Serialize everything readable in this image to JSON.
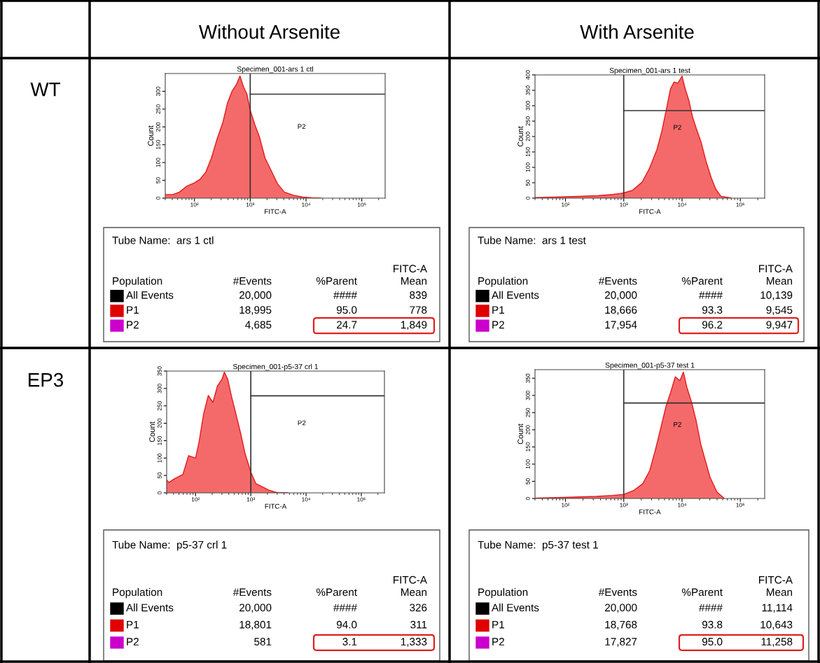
{
  "chart_data": [
    {
      "type": "area",
      "title": "Specimen_001-ars 1 ctl",
      "xlabel": "FITC-A",
      "ylabel": "Count",
      "log": "x",
      "series": [
        {
          "color": "#f46a6a",
          "x": [
            30,
            41,
            54,
            72,
            100,
            126,
            160,
            202,
            256,
            324,
            391,
            471,
            569,
            655,
            755,
            869,
            1000,
            1207,
            1456,
            1841,
            2328,
            3090,
            4093,
            5970,
            8690,
            12600,
            18400
          ],
          "values": [
            10,
            10,
            17,
            33,
            43,
            53,
            73,
            113,
            167,
            213,
            267,
            300,
            320,
            343,
            313,
            293,
            247,
            207,
            173,
            113,
            80,
            40,
            17,
            8,
            3,
            1,
            0
          ]
        },
        {
          "type": "line",
          "color": "#333333",
          "x": [
            1000,
            262144
          ],
          "values": [
            292,
            292
          ]
        }
      ],
      "xlim": [
        30,
        262144
      ],
      "xticks": [
        {
          "value": 100,
          "label": "10²"
        },
        {
          "value": 1000,
          "label": "10³"
        },
        {
          "value": 10000,
          "label": "10⁴"
        },
        {
          "value": 100000,
          "label": "10⁵"
        }
      ],
      "ylim": [
        0,
        350
      ],
      "yticks": [
        0,
        50,
        100,
        150,
        200,
        250,
        300
      ],
      "ref_lines": [
        {
          "axis": "x",
          "value": 1000,
          "color": "#333333"
        }
      ],
      "annotations": [
        "Without Arsenite",
        "WT",
        "P2",
        "Tube Name:  ars 1 ctl",
        "Population",
        "#Events",
        "%Parent",
        "FITC-A\nMean",
        "All Events",
        "20,000",
        "####",
        "839",
        "P1",
        "18,995",
        "95.0",
        "778",
        "P2",
        "4,685",
        "24.7",
        "1,849"
      ]
    },
    {
      "type": "area",
      "title": "Specimen_001-ars 1 test",
      "xlabel": "FITC-A",
      "ylabel": "Count",
      "log": "x",
      "series": [
        {
          "color": "#f46a6a",
          "x": [
            30,
            51,
            136,
            361,
            646,
            865,
            1000,
            1405,
            2070,
            2770,
            3715,
            4510,
            5470,
            6340,
            7330,
            8480,
            10000,
            11350,
            13100,
            15150,
            17570,
            21380,
            25800,
            31600,
            38000,
            46400,
            68400
          ],
          "values": [
            2,
            3,
            5,
            8,
            12,
            15,
            17,
            25,
            52,
            97,
            158,
            218,
            294,
            355,
            377,
            373,
            396,
            355,
            317,
            264,
            226,
            180,
            120,
            67,
            29,
            6,
            1
          ]
        },
        {
          "type": "line",
          "color": "#333333",
          "x": [
            1000,
            262144
          ],
          "values": [
            284,
            284
          ]
        }
      ],
      "xlim": [
        30,
        262144
      ],
      "xticks": [
        {
          "value": 100,
          "label": "10²"
        },
        {
          "value": 1000,
          "label": "10³"
        },
        {
          "value": 10000,
          "label": "10⁴"
        },
        {
          "value": 100000,
          "label": "10⁵"
        }
      ],
      "ylim": [
        0,
        400
      ],
      "yticks": [
        0,
        50,
        100,
        150,
        200,
        250,
        300,
        350,
        400
      ],
      "ref_lines": [
        {
          "axis": "x",
          "value": 1000,
          "color": "#333333"
        }
      ],
      "annotations": [
        "With Arsenite",
        "P2",
        "Tube Name:  ars 1 test",
        "Population",
        "#Events",
        "%Parent",
        "FITC-A\nMean",
        "All Events",
        "20,000",
        "####",
        "10,139",
        "P1",
        "18,666",
        "93.3",
        "9,545",
        "P2",
        "17,954",
        "96.2",
        "9,947"
      ]
    },
    {
      "type": "area",
      "title": "Specimen_001-p5-37 crl 1",
      "xlabel": "FITC-A",
      "ylabel": "Count",
      "log": "x",
      "series": [
        {
          "color": "#f46a6a",
          "x": [
            30,
            33,
            41,
            59,
            75,
            100,
            116,
            140,
            170,
            206,
            249,
            302,
            332,
            382,
            443,
            537,
            650,
            787,
            1000,
            1230,
            1640,
            2190,
            2920,
            4700
          ],
          "values": [
            37,
            30,
            40,
            53,
            107,
            100,
            147,
            227,
            280,
            260,
            307,
            327,
            347,
            327,
            280,
            227,
            173,
            113,
            60,
            27,
            17,
            7,
            1,
            0
          ]
        },
        {
          "type": "line",
          "color": "#333333",
          "x": [
            1000,
            262144
          ],
          "values": [
            279,
            279
          ]
        }
      ],
      "xlim": [
        30,
        262144
      ],
      "xticks": [
        {
          "value": 100,
          "label": "10²"
        },
        {
          "value": 1000,
          "label": "10³"
        },
        {
          "value": 10000,
          "label": "10⁴"
        },
        {
          "value": 100000,
          "label": "10⁵"
        }
      ],
      "ylim": [
        0,
        350
      ],
      "yticks": [
        0,
        50,
        100,
        150,
        200,
        250,
        300,
        350
      ],
      "ref_lines": [
        {
          "axis": "x",
          "value": 1000,
          "color": "#333333"
        }
      ],
      "annotations": [
        "EP3",
        "P2",
        "Tube Name:  p5-37 crl 1",
        "Population",
        "#Events",
        "%Parent",
        "FITC-A\nMean",
        "All Events",
        "20,000",
        "####",
        "326",
        "P1",
        "18,801",
        "94.0",
        "311",
        "P2",
        "581",
        "3.1",
        "1,333"
      ]
    },
    {
      "type": "area",
      "title": "Specimen_001-p5-37 test 1",
      "xlabel": "FITC-A",
      "ylabel": "Count",
      "log": "x",
      "series": [
        {
          "color": "#f46a6a",
          "x": [
            31,
            90,
            338,
            646,
            1000,
            1470,
            2120,
            2790,
            3510,
            4420,
            5310,
            6380,
            7660,
            9200,
            10570,
            12130,
            14560,
            17500,
            21030,
            25250,
            30340,
            39800,
            52500
          ],
          "values": [
            1,
            3,
            6,
            9,
            12,
            23,
            43,
            81,
            143,
            212,
            268,
            309,
            354,
            343,
            368,
            323,
            281,
            226,
            157,
            109,
            61,
            19,
            1
          ]
        },
        {
          "type": "line",
          "color": "#333333",
          "x": [
            1000,
            262144
          ],
          "values": [
            278,
            278
          ]
        }
      ],
      "xlim": [
        30,
        262144
      ],
      "xticks": [
        {
          "value": 100,
          "label": "10²"
        },
        {
          "value": 1000,
          "label": "10³"
        },
        {
          "value": 10000,
          "label": "10⁴"
        },
        {
          "value": 100000,
          "label": "10⁵"
        }
      ],
      "ylim": [
        0,
        375
      ],
      "yticks": [
        0,
        50,
        100,
        150,
        200,
        250,
        300,
        350
      ],
      "ref_lines": [
        {
          "axis": "x",
          "value": 1000,
          "color": "#333333"
        }
      ],
      "annotations": [
        "P2",
        "Tube Name:  p5-37 test 1",
        "Population",
        "#Events",
        "%Parent",
        "FITC-A\nMean",
        "All Events",
        "20,000",
        "####",
        "11,114",
        "P1",
        "18,768",
        "93.8",
        "10,643",
        "P2",
        "17,827",
        "95.0",
        "11,258"
      ]
    }
  ]
}
